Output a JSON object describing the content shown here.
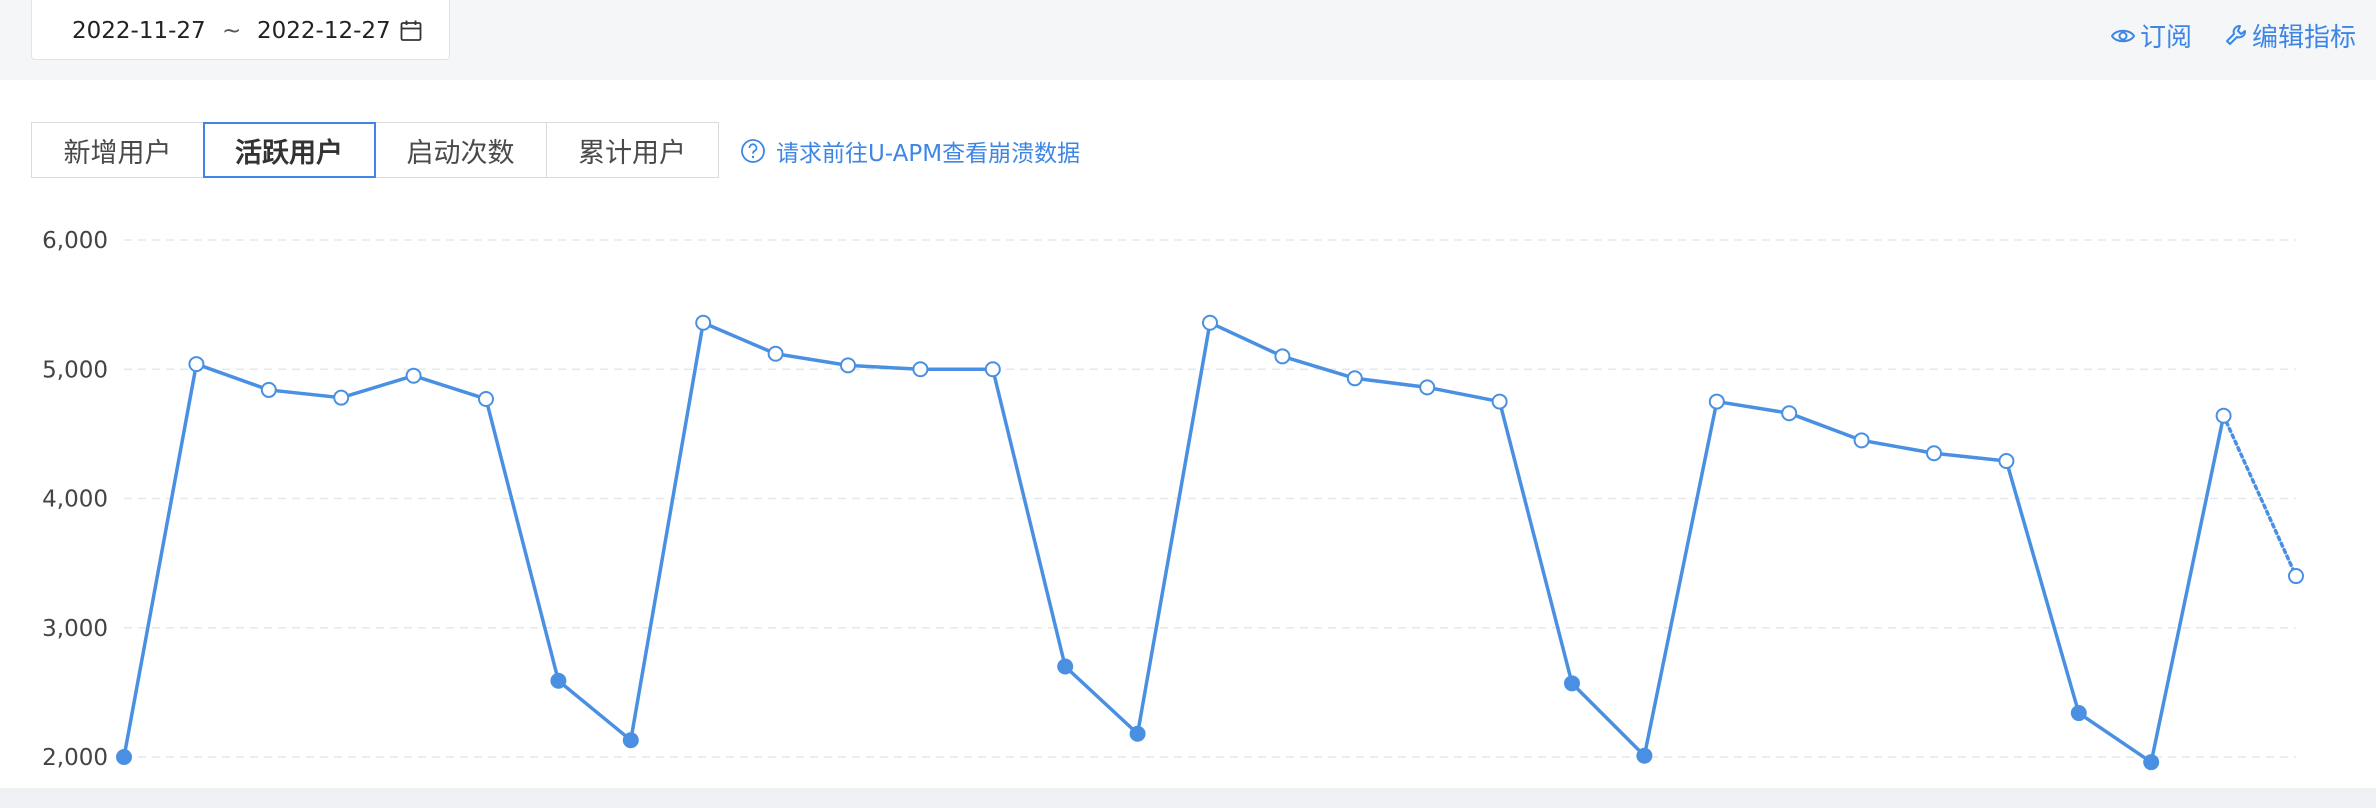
{
  "header": {
    "date_start": "2022-11-27",
    "date_sep": "~",
    "date_end": "2022-12-27",
    "subscribe_label": "订阅",
    "edit_metric_label": "编辑指标"
  },
  "tabs": [
    {
      "label": "新增用户",
      "active": false
    },
    {
      "label": "活跃用户",
      "active": true
    },
    {
      "label": "启动次数",
      "active": false
    },
    {
      "label": "累计用户",
      "active": false
    }
  ],
  "apm_link": "请求前往U-APM查看崩溃数据",
  "colors": {
    "accent": "#3d86e5",
    "line": "#4a90e2",
    "grid": "#e5e7eb"
  },
  "chart_data": {
    "type": "line",
    "ylim": [
      2000,
      6000
    ],
    "ytick_labels": [
      "6,000",
      "5,000",
      "4,000",
      "3,000",
      "2,000"
    ],
    "ytick_values": [
      6000,
      5000,
      4000,
      3000,
      2000
    ],
    "grid": true,
    "values": [
      2000,
      5040,
      4840,
      4780,
      4950,
      4770,
      2590,
      2130,
      5360,
      5120,
      5030,
      5000,
      5000,
      2700,
      2180,
      5360,
      5100,
      4930,
      4860,
      4750,
      2570,
      2010,
      4750,
      4660,
      4450,
      4350,
      4290,
      2340,
      1960,
      4640,
      3400
    ],
    "weekend_indices": [
      0,
      6,
      7,
      13,
      14,
      20,
      21,
      27,
      28
    ],
    "dotted_last_segment": true
  }
}
